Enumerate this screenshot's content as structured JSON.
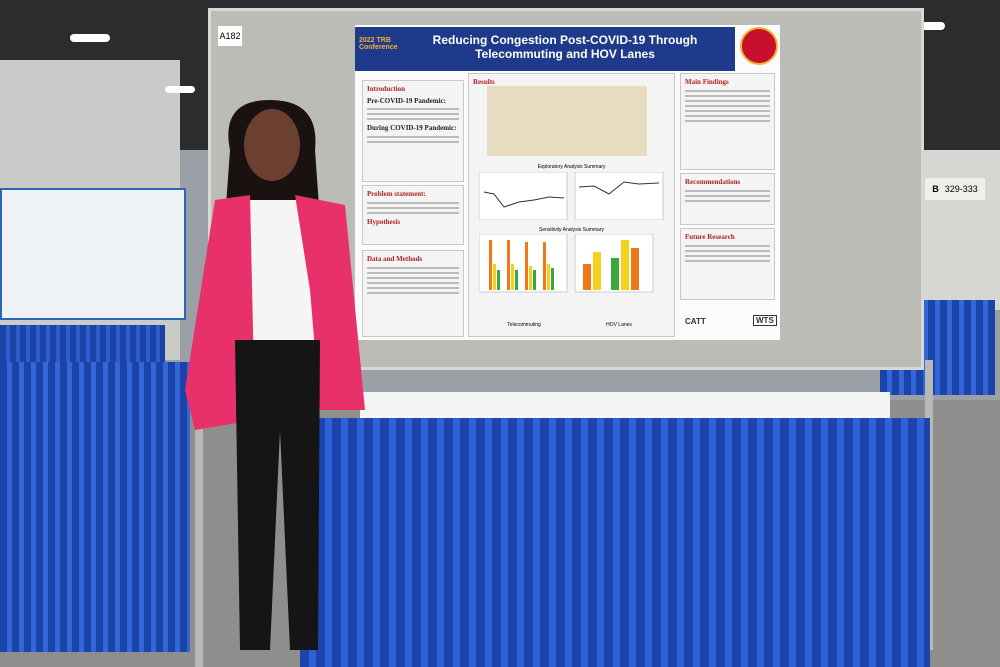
{
  "booth": {
    "number": "A182"
  },
  "poster": {
    "conference": "2022 TRB Conference",
    "title": "Reducing Congestion Post-COVID-19 Through Telecommuting and HOV Lanes",
    "left": {
      "intro": "Introduction",
      "pre": "Pre-COVID-19 Pandemic:",
      "during": "During COVID-19 Pandemic:",
      "problem": "Problem statement:",
      "hypothesis": "Hypothesis",
      "methods": "Data and Methods"
    },
    "center": {
      "heading": "Results",
      "exploratory": "Exploratory Analysis Summary",
      "sensitivity": "Sensitivity Analysis Summary",
      "telecommuting": "Telecommuting",
      "hov": "HOV Lanes"
    },
    "right": {
      "findings": "Main Findings",
      "recommendations": "Recommendations",
      "future": "Future Research"
    },
    "logos": [
      "CATT",
      "WTS"
    ]
  },
  "sign": {
    "hall": "B",
    "range": "329-333"
  }
}
